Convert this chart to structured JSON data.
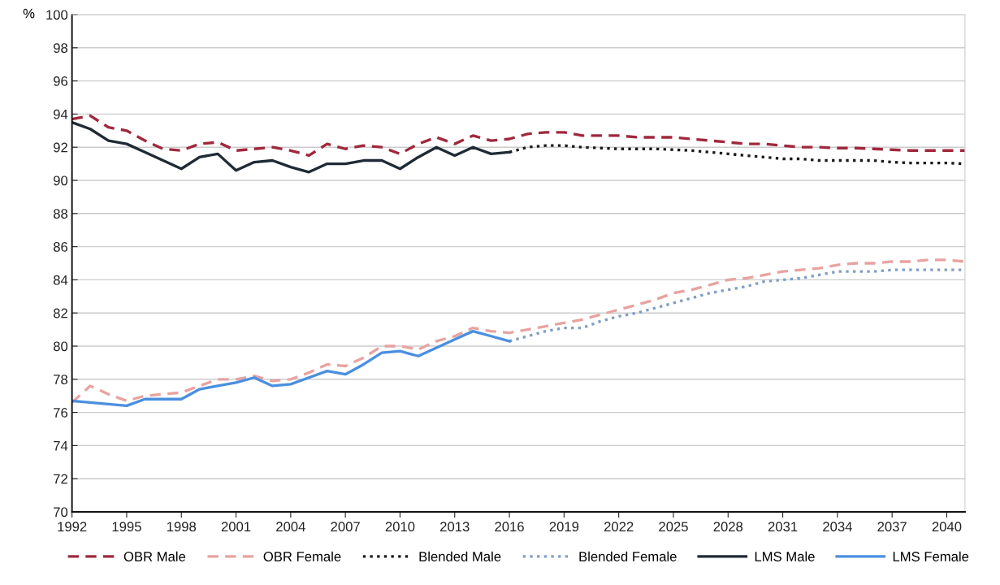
{
  "chart_data": {
    "type": "line",
    "ylabel": "%",
    "xlim": [
      1992,
      2041
    ],
    "xticks": [
      1992,
      1995,
      1998,
      2001,
      2004,
      2007,
      2010,
      2013,
      2016,
      2019,
      2022,
      2025,
      2028,
      2031,
      2034,
      2037,
      2040
    ],
    "ylim": [
      70,
      100
    ],
    "yticks": [
      70,
      72,
      74,
      76,
      78,
      80,
      82,
      84,
      86,
      88,
      90,
      92,
      94,
      96,
      98,
      100
    ],
    "grid": "y",
    "legend": "bottom",
    "marker": "none",
    "series": [
      {
        "name": "OBR Male",
        "color": "#a0283c",
        "line_style": "dashed",
        "x": [
          1992,
          1993,
          1994,
          1995,
          1996,
          1997,
          1998,
          1999,
          2000,
          2001,
          2002,
          2003,
          2004,
          2005,
          2006,
          2007,
          2008,
          2009,
          2010,
          2011,
          2012,
          2013,
          2014,
          2015,
          2016,
          2017,
          2018,
          2019,
          2020,
          2021,
          2022,
          2023,
          2024,
          2025,
          2026,
          2027,
          2028,
          2029,
          2030,
          2031,
          2032,
          2033,
          2034,
          2035,
          2036,
          2037,
          2038,
          2039,
          2040,
          2041
        ],
        "values": [
          93.7,
          93.9,
          93.2,
          93.0,
          92.4,
          91.9,
          91.8,
          92.2,
          92.3,
          91.8,
          91.9,
          92.0,
          91.8,
          91.5,
          92.2,
          91.9,
          92.1,
          92.0,
          91.6,
          92.2,
          92.6,
          92.2,
          92.7,
          92.4,
          92.5,
          92.8,
          92.9,
          92.9,
          92.7,
          92.7,
          92.7,
          92.6,
          92.6,
          92.6,
          92.5,
          92.4,
          92.3,
          92.2,
          92.2,
          92.1,
          92.0,
          92.0,
          91.95,
          91.95,
          91.9,
          91.85,
          91.8,
          91.8,
          91.8,
          91.8
        ]
      },
      {
        "name": "OBR Female",
        "color": "#e8a3a0",
        "line_style": "dashed",
        "x": [
          1992,
          1993,
          1994,
          1995,
          1996,
          1997,
          1998,
          1999,
          2000,
          2001,
          2002,
          2003,
          2004,
          2005,
          2006,
          2007,
          2008,
          2009,
          2010,
          2011,
          2012,
          2013,
          2014,
          2015,
          2016,
          2017,
          2018,
          2019,
          2020,
          2021,
          2022,
          2023,
          2024,
          2025,
          2026,
          2027,
          2028,
          2029,
          2030,
          2031,
          2032,
          2033,
          2034,
          2035,
          2036,
          2037,
          2038,
          2039,
          2040,
          2041
        ],
        "values": [
          76.6,
          77.6,
          77.1,
          76.7,
          77.0,
          77.1,
          77.2,
          77.6,
          78.0,
          78.0,
          78.2,
          77.9,
          78.0,
          78.4,
          78.9,
          78.8,
          79.3,
          80.0,
          80.0,
          79.8,
          80.3,
          80.6,
          81.1,
          80.9,
          80.8,
          81.0,
          81.2,
          81.4,
          81.6,
          81.9,
          82.2,
          82.5,
          82.8,
          83.2,
          83.4,
          83.7,
          84.0,
          84.1,
          84.3,
          84.5,
          84.6,
          84.7,
          84.9,
          85.0,
          85.0,
          85.1,
          85.1,
          85.2,
          85.2,
          85.1
        ]
      },
      {
        "name": "Blended Male",
        "color": "#1a1a1a",
        "line_style": "dotted",
        "x": [
          2016,
          2017,
          2018,
          2019,
          2020,
          2021,
          2022,
          2023,
          2024,
          2025,
          2026,
          2027,
          2028,
          2029,
          2030,
          2031,
          2032,
          2033,
          2034,
          2035,
          2036,
          2037,
          2038,
          2039,
          2040,
          2041
        ],
        "values": [
          91.7,
          92.0,
          92.1,
          92.1,
          92.0,
          91.95,
          91.9,
          91.9,
          91.9,
          91.85,
          91.8,
          91.7,
          91.6,
          91.5,
          91.4,
          91.3,
          91.3,
          91.2,
          91.2,
          91.2,
          91.2,
          91.1,
          91.05,
          91.05,
          91.05,
          91.0
        ]
      },
      {
        "name": "Blended Female",
        "color": "#7f9fc4",
        "line_style": "dotted",
        "x": [
          2016,
          2017,
          2018,
          2019,
          2020,
          2021,
          2022,
          2023,
          2024,
          2025,
          2026,
          2027,
          2028,
          2029,
          2030,
          2031,
          2032,
          2033,
          2034,
          2035,
          2036,
          2037,
          2038,
          2039,
          2040,
          2041
        ],
        "values": [
          80.3,
          80.6,
          80.9,
          81.1,
          81.1,
          81.5,
          81.8,
          82.0,
          82.3,
          82.6,
          82.9,
          83.2,
          83.4,
          83.6,
          83.9,
          84.0,
          84.1,
          84.3,
          84.5,
          84.5,
          84.5,
          84.6,
          84.6,
          84.6,
          84.6,
          84.6
        ]
      },
      {
        "name": "LMS Male",
        "color": "#1f2a36",
        "line_style": "solid",
        "x": [
          1992,
          1993,
          1994,
          1995,
          1996,
          1997,
          1998,
          1999,
          2000,
          2001,
          2002,
          2003,
          2004,
          2005,
          2006,
          2007,
          2008,
          2009,
          2010,
          2011,
          2012,
          2013,
          2014,
          2015,
          2016
        ],
        "values": [
          93.5,
          93.1,
          92.4,
          92.2,
          91.7,
          91.2,
          90.7,
          91.4,
          91.6,
          90.6,
          91.1,
          91.2,
          90.8,
          90.5,
          91.0,
          91.0,
          91.2,
          91.2,
          90.7,
          91.4,
          92.0,
          91.5,
          92.0,
          91.6,
          91.7
        ]
      },
      {
        "name": "LMS Female",
        "color": "#4a8fdf",
        "line_style": "solid",
        "x": [
          1992,
          1993,
          1994,
          1995,
          1996,
          1997,
          1998,
          1999,
          2000,
          2001,
          2002,
          2003,
          2004,
          2005,
          2006,
          2007,
          2008,
          2009,
          2010,
          2011,
          2012,
          2013,
          2014,
          2015,
          2016
        ],
        "values": [
          76.7,
          76.6,
          76.5,
          76.4,
          76.8,
          76.8,
          76.8,
          77.4,
          77.6,
          77.8,
          78.1,
          77.6,
          77.7,
          78.1,
          78.5,
          78.3,
          78.9,
          79.6,
          79.7,
          79.4,
          79.9,
          80.4,
          80.9,
          80.6,
          80.3
        ]
      }
    ]
  }
}
